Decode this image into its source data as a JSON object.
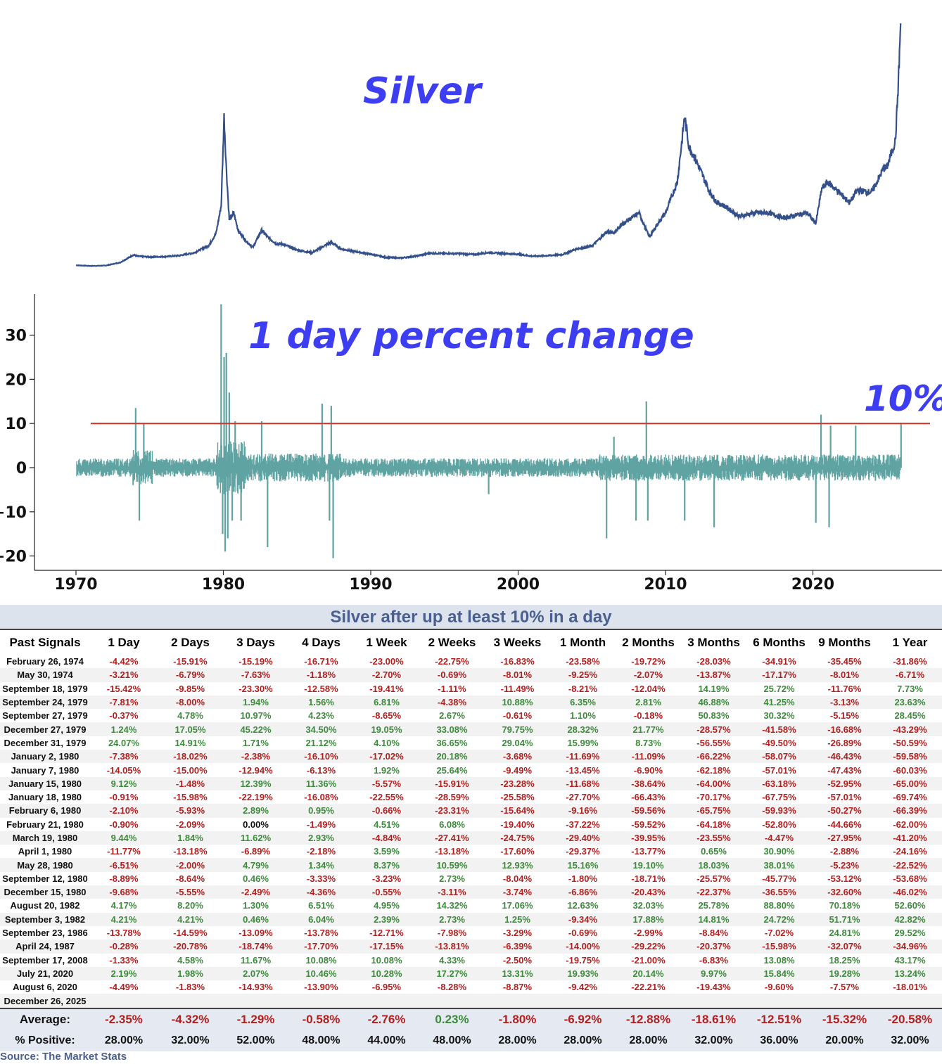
{
  "chart_data": [
    {
      "type": "line",
      "title": "Silver",
      "xlabel": "",
      "ylabel": "",
      "x_range": [
        1970,
        2026
      ],
      "color": "#34508b",
      "x": [
        1970.0,
        1971.0,
        1972.0,
        1973.0,
        1973.9,
        1974.2,
        1975.0,
        1976.0,
        1977.0,
        1978.0,
        1979.0,
        1979.5,
        1979.85,
        1980.05,
        1980.2,
        1980.4,
        1980.7,
        1981.0,
        1981.5,
        1982.0,
        1982.6,
        1983.0,
        1983.6,
        1984.0,
        1985.0,
        1986.0,
        1987.3,
        1988.0,
        1990.0,
        1991.0,
        1992.0,
        1993.0,
        1994.0,
        1995.0,
        1996.0,
        1997.0,
        1998.0,
        1999.0,
        2000.0,
        2001.0,
        2002.0,
        2003.0,
        2004.0,
        2005.0,
        2006.0,
        2006.5,
        2007.0,
        2008.2,
        2008.9,
        2009.5,
        2010.0,
        2010.8,
        2011.3,
        2011.6,
        2012.0,
        2012.5,
        2013.0,
        2013.5,
        2014.0,
        2015.0,
        2016.0,
        2017.0,
        2018.0,
        2019.0,
        2019.6,
        2020.2,
        2020.6,
        2021.0,
        2022.0,
        2022.5,
        2023.0,
        2024.0,
        2024.8,
        2025.0,
        2025.3,
        2025.6,
        2025.8,
        2025.95
      ],
      "y": [
        1.8,
        1.6,
        1.7,
        2.6,
        4.8,
        4.4,
        4.2,
        4.3,
        4.6,
        5.4,
        7.5,
        11,
        19,
        45,
        30,
        15,
        17,
        12,
        9,
        7,
        12,
        10,
        8,
        8,
        6.2,
        5.4,
        8.5,
        6.5,
        5,
        4.1,
        3.9,
        4.4,
        5.3,
        5.2,
        5.2,
        4.9,
        5.5,
        5.2,
        5.0,
        4.4,
        4.6,
        4.9,
        6.6,
        7.3,
        11.5,
        11.2,
        13.5,
        17,
        10,
        14,
        17,
        26,
        45,
        36,
        33,
        28,
        23,
        20,
        19,
        16,
        17,
        17,
        15.5,
        16.5,
        17,
        14,
        24,
        26,
        22,
        20,
        23.5,
        23,
        30,
        30,
        34,
        38,
        55,
        72
      ]
    },
    {
      "type": "line",
      "title": "1 day percent change",
      "xlabel": "",
      "ylabel": "",
      "ylim": [
        -22,
        39
      ],
      "yticks": [
        30,
        20,
        10,
        0,
        -10,
        -20
      ],
      "x_range": [
        1970,
        2026
      ],
      "xticks": [
        "1970",
        "1980",
        "1990",
        "2000",
        "2010",
        "2020"
      ],
      "color": "#5fa3a3",
      "threshold": {
        "value": 10,
        "label": "10%",
        "color": "#d03a2a"
      },
      "spikes": [
        {
          "x": 1974.05,
          "y": 13.5
        },
        {
          "x": 1974.3,
          "y": -12.0
        },
        {
          "x": 1974.6,
          "y": 10.0
        },
        {
          "x": 1979.85,
          "y": 37.0
        },
        {
          "x": 1979.95,
          "y": -15.0
        },
        {
          "x": 1980.05,
          "y": 25.0
        },
        {
          "x": 1980.12,
          "y": -19.0
        },
        {
          "x": 1980.2,
          "y": 26.0
        },
        {
          "x": 1980.3,
          "y": -16.0
        },
        {
          "x": 1980.4,
          "y": 17.0
        },
        {
          "x": 1980.6,
          "y": -12.0
        },
        {
          "x": 1980.8,
          "y": 10.5
        },
        {
          "x": 1981.2,
          "y": -12.0
        },
        {
          "x": 1982.6,
          "y": 10.5
        },
        {
          "x": 1983.0,
          "y": -18.0
        },
        {
          "x": 1986.7,
          "y": 14.5
        },
        {
          "x": 1987.2,
          "y": -12.0
        },
        {
          "x": 1987.32,
          "y": 14.0
        },
        {
          "x": 1987.45,
          "y": -20.5
        },
        {
          "x": 1998.0,
          "y": -6.0
        },
        {
          "x": 2006.0,
          "y": -16.0
        },
        {
          "x": 2006.5,
          "y": 7.0
        },
        {
          "x": 2008.0,
          "y": -12.0
        },
        {
          "x": 2008.7,
          "y": 15.0
        },
        {
          "x": 2008.8,
          "y": -12.0
        },
        {
          "x": 2011.3,
          "y": -12.0
        },
        {
          "x": 2013.3,
          "y": -13.5
        },
        {
          "x": 2020.2,
          "y": -12.5
        },
        {
          "x": 2020.55,
          "y": 12.0
        },
        {
          "x": 2021.1,
          "y": -13.5
        },
        {
          "x": 2021.2,
          "y": 9.5
        },
        {
          "x": 2022.9,
          "y": 9.5
        },
        {
          "x": 2025.98,
          "y": 10.2
        }
      ]
    }
  ],
  "table": {
    "title": "Silver after up at least 10% in a day",
    "headers": [
      "Past Signals",
      "1 Day",
      "2 Days",
      "3 Days",
      "4 Days",
      "1 Week",
      "2 Weeks",
      "3 Weeks",
      "1 Month",
      "2 Months",
      "3 Months",
      "6 Months",
      "9 Months",
      "1 Year"
    ],
    "rows": [
      [
        "February 26, 1974",
        "-4.42%",
        "-15.91%",
        "-15.19%",
        "-16.71%",
        "-23.00%",
        "-22.75%",
        "-16.83%",
        "-23.58%",
        "-19.72%",
        "-28.03%",
        "-34.91%",
        "-35.45%",
        "-31.86%"
      ],
      [
        "May 30, 1974",
        "-3.21%",
        "-6.79%",
        "-7.63%",
        "-1.18%",
        "-2.70%",
        "-0.69%",
        "-8.01%",
        "-9.25%",
        "-2.07%",
        "-13.87%",
        "-17.17%",
        "-8.01%",
        "-6.71%"
      ],
      [
        "September 18, 1979",
        "-15.42%",
        "-9.85%",
        "-23.30%",
        "-12.58%",
        "-19.41%",
        "-1.11%",
        "-11.49%",
        "-8.21%",
        "-12.04%",
        "14.19%",
        "25.72%",
        "-11.76%",
        "7.73%"
      ],
      [
        "September 24, 1979",
        "-7.81%",
        "-8.00%",
        "1.94%",
        "1.56%",
        "6.81%",
        "-4.38%",
        "10.88%",
        "6.35%",
        "2.81%",
        "46.88%",
        "41.25%",
        "-3.13%",
        "23.63%"
      ],
      [
        "September 27, 1979",
        "-0.37%",
        "4.78%",
        "10.97%",
        "4.23%",
        "-8.65%",
        "2.67%",
        "-0.61%",
        "1.10%",
        "-0.18%",
        "50.83%",
        "30.32%",
        "-5.15%",
        "28.45%"
      ],
      [
        "December 27, 1979",
        "1.24%",
        "17.05%",
        "45.22%",
        "34.50%",
        "19.05%",
        "33.08%",
        "79.75%",
        "28.32%",
        "21.77%",
        "-28.57%",
        "-41.58%",
        "-16.68%",
        "-43.29%"
      ],
      [
        "December 31, 1979",
        "24.07%",
        "14.91%",
        "1.71%",
        "21.12%",
        "4.10%",
        "36.65%",
        "29.04%",
        "15.99%",
        "8.73%",
        "-56.55%",
        "-49.50%",
        "-26.89%",
        "-50.59%"
      ],
      [
        "January 2, 1980",
        "-7.38%",
        "-18.02%",
        "-2.38%",
        "-16.10%",
        "-17.02%",
        "20.18%",
        "-3.68%",
        "-11.69%",
        "-11.09%",
        "-66.22%",
        "-58.07%",
        "-46.43%",
        "-59.58%"
      ],
      [
        "January 7, 1980",
        "-14.05%",
        "-15.00%",
        "-12.94%",
        "-6.13%",
        "1.92%",
        "25.64%",
        "-9.49%",
        "-13.45%",
        "-6.90%",
        "-62.18%",
        "-57.01%",
        "-47.43%",
        "-60.03%"
      ],
      [
        "January 15, 1980",
        "9.12%",
        "-1.48%",
        "12.39%",
        "11.36%",
        "-5.57%",
        "-15.91%",
        "-23.28%",
        "-11.68%",
        "-38.64%",
        "-64.00%",
        "-63.18%",
        "-52.95%",
        "-65.00%"
      ],
      [
        "January 18, 1980",
        "-0.91%",
        "-15.98%",
        "-22.19%",
        "-16.08%",
        "-22.55%",
        "-28.59%",
        "-25.58%",
        "-27.70%",
        "-66.43%",
        "-70.17%",
        "-67.75%",
        "-57.01%",
        "-69.74%"
      ],
      [
        "February 6, 1980",
        "-2.10%",
        "-5.93%",
        "2.89%",
        "0.95%",
        "-0.66%",
        "-23.31%",
        "-15.64%",
        "-9.16%",
        "-59.56%",
        "-65.75%",
        "-59.93%",
        "-50.27%",
        "-66.39%"
      ],
      [
        "February 21, 1980",
        "-0.90%",
        "-2.09%",
        "0.00%",
        "-1.49%",
        "4.51%",
        "6.08%",
        "-19.40%",
        "-37.22%",
        "-59.52%",
        "-64.18%",
        "-52.80%",
        "-44.66%",
        "-62.00%"
      ],
      [
        "March 19, 1980",
        "9.44%",
        "1.84%",
        "11.62%",
        "2.93%",
        "-4.84%",
        "-27.41%",
        "-24.75%",
        "-29.40%",
        "-39.95%",
        "-23.55%",
        "-4.47%",
        "-27.95%",
        "-41.20%"
      ],
      [
        "April 1, 1980",
        "-11.77%",
        "-13.18%",
        "-6.89%",
        "-2.18%",
        "3.59%",
        "-13.18%",
        "-17.60%",
        "-29.37%",
        "-13.77%",
        "0.65%",
        "30.90%",
        "-2.88%",
        "-24.16%"
      ],
      [
        "May 28, 1980",
        "-6.51%",
        "-2.00%",
        "4.79%",
        "1.34%",
        "8.37%",
        "10.59%",
        "12.93%",
        "15.16%",
        "19.10%",
        "18.03%",
        "38.01%",
        "-5.23%",
        "-22.52%"
      ],
      [
        "September 12, 1980",
        "-8.89%",
        "-8.64%",
        "0.46%",
        "-3.33%",
        "-3.23%",
        "2.73%",
        "-8.04%",
        "-1.80%",
        "-18.71%",
        "-25.57%",
        "-45.77%",
        "-53.12%",
        "-53.68%"
      ],
      [
        "December 15, 1980",
        "-9.68%",
        "-5.55%",
        "-2.49%",
        "-4.36%",
        "-0.55%",
        "-3.11%",
        "-3.74%",
        "-6.86%",
        "-20.43%",
        "-22.37%",
        "-36.55%",
        "-32.60%",
        "-46.02%"
      ],
      [
        "August 20, 1982",
        "4.17%",
        "8.20%",
        "1.30%",
        "6.51%",
        "4.95%",
        "14.32%",
        "17.06%",
        "12.63%",
        "32.03%",
        "25.78%",
        "88.80%",
        "70.18%",
        "52.60%"
      ],
      [
        "September 3, 1982",
        "4.21%",
        "4.21%",
        "0.46%",
        "6.04%",
        "2.39%",
        "2.73%",
        "1.25%",
        "-9.34%",
        "17.88%",
        "14.81%",
        "24.72%",
        "51.71%",
        "42.82%"
      ],
      [
        "September 23, 1986",
        "-13.78%",
        "-14.59%",
        "-13.09%",
        "-13.78%",
        "-12.71%",
        "-7.98%",
        "-3.29%",
        "-0.69%",
        "-2.99%",
        "-8.84%",
        "-7.02%",
        "24.81%",
        "29.52%"
      ],
      [
        "April 24, 1987",
        "-0.28%",
        "-20.78%",
        "-18.74%",
        "-17.70%",
        "-17.15%",
        "-13.81%",
        "-6.39%",
        "-14.00%",
        "-29.22%",
        "-20.37%",
        "-15.98%",
        "-32.07%",
        "-34.96%"
      ],
      [
        "September 17, 2008",
        "-1.33%",
        "4.58%",
        "11.67%",
        "10.08%",
        "10.08%",
        "4.33%",
        "-2.50%",
        "-19.75%",
        "-21.00%",
        "-6.83%",
        "13.08%",
        "18.25%",
        "43.17%"
      ],
      [
        "July 21, 2020",
        "2.19%",
        "1.98%",
        "2.07%",
        "10.46%",
        "10.28%",
        "17.27%",
        "13.31%",
        "19.93%",
        "20.14%",
        "9.97%",
        "15.84%",
        "19.28%",
        "13.24%"
      ],
      [
        "August 6, 2020",
        "-4.49%",
        "-1.83%",
        "-14.93%",
        "-13.90%",
        "-6.95%",
        "-8.28%",
        "-8.87%",
        "-9.42%",
        "-22.21%",
        "-19.43%",
        "-9.60%",
        "-7.57%",
        "-18.01%"
      ],
      [
        "December 26, 2025",
        "",
        "",
        "",
        "",
        "",
        "",
        "",
        "",
        "",
        "",
        "",
        "",
        ""
      ]
    ],
    "average": [
      "Average:",
      "-2.35%",
      "-4.32%",
      "-1.29%",
      "-0.58%",
      "-2.76%",
      "0.23%",
      "-1.80%",
      "-6.92%",
      "-12.88%",
      "-18.61%",
      "-12.51%",
      "-15.32%",
      "-20.58%"
    ],
    "pct_positive": [
      "% Positive:",
      "28.00%",
      "32.00%",
      "52.00%",
      "48.00%",
      "44.00%",
      "48.00%",
      "28.00%",
      "28.00%",
      "28.00%",
      "32.00%",
      "36.00%",
      "20.00%",
      "32.00%"
    ]
  },
  "source": "Source: The Market Stats",
  "colors": {
    "negative": "#b22020",
    "positive": "#3d8a3d",
    "header_band": "#dde3ed",
    "title_blue": "#3d3df2"
  }
}
